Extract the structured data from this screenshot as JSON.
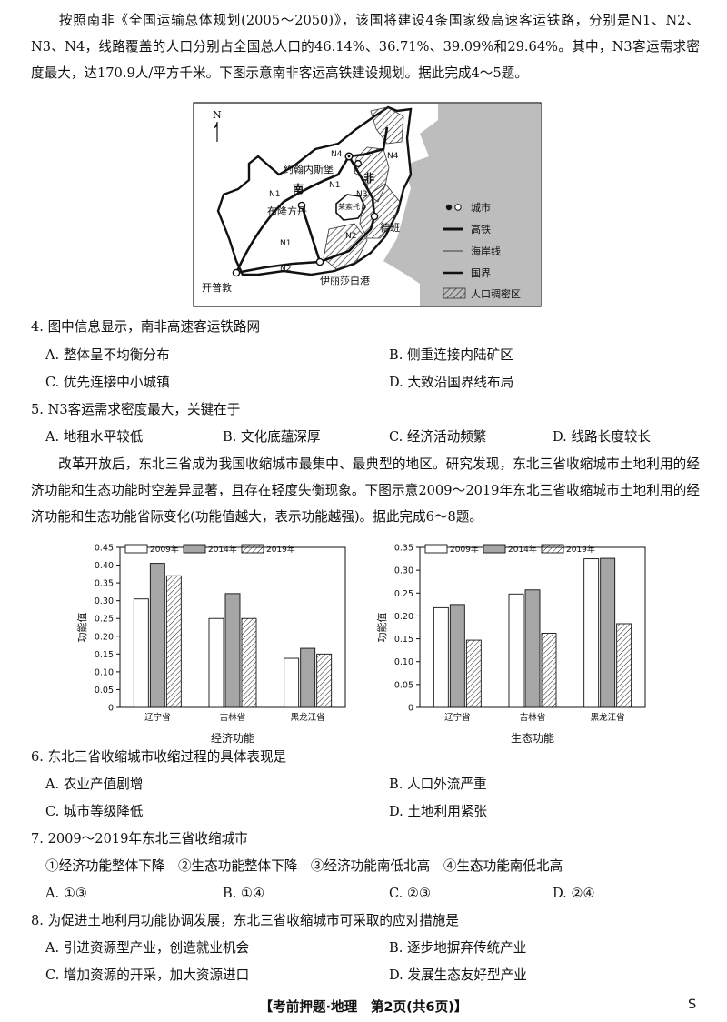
{
  "intro1": "按照南非《全国运输总体规划(2005～2050)》，该国将建设4条国家级高速客运铁路，分别是N1、N2、N3、N4，线路覆盖的人口分别占全国总人口的46.14%、36.71%、39.09%和29.64%。其中，N3客运需求密度最大，达170.9人/平方千米。下图示意南非客运高铁建设规划。据此完成4～5题。",
  "map": {
    "north": "N",
    "country": "南",
    "country2": "非",
    "lesotho": "莱索托",
    "cities": [
      "约翰内斯堡",
      "布隆方丹",
      "德班",
      "开普敦",
      "伊丽莎白港"
    ],
    "lines": [
      "N1",
      "N1",
      "N1",
      "N2",
      "N2",
      "N3",
      "N4",
      "N4"
    ],
    "legend": [
      "城市",
      "高铁",
      "海岸线",
      "国界",
      "人口稠密区"
    ]
  },
  "q4": {
    "stem": "4. 图中信息显示，南非高速客运铁路网",
    "options": [
      "A. 整体呈不均衡分布",
      "B. 侧重连接内陆矿区",
      "C. 优先连接中小城镇",
      "D. 大致沿国界线布局"
    ]
  },
  "q5": {
    "stem": "5. N3客运需求密度最大，关键在于",
    "options": [
      "A. 地租水平较低",
      "B. 文化底蕴深厚",
      "C. 经济活动频繁",
      "D. 线路长度较长"
    ]
  },
  "intro2": "改革开放后，东北三省成为我国收缩城市最集中、最典型的地区。研究发现，东北三省收缩城市土地利用的经济功能和生态功能时空差异显著，且存在轻度失衡现象。下图示意2009～2019年东北三省收缩城市土地利用的经济功能和生态功能省际变化(功能值越大，表示功能越强)。据此完成6～8题。",
  "chart_data": [
    {
      "type": "bar",
      "title": "经济功能",
      "ylabel": "功能值",
      "categories": [
        "辽宁省",
        "吉林省",
        "黑龙江省"
      ],
      "ylim": [
        0,
        0.45
      ],
      "ticks": [
        "0",
        "0.05",
        "0.10",
        "0.15",
        "0.20",
        "0.25",
        "0.30",
        "0.35",
        "0.40",
        "0.45"
      ],
      "legend": "top",
      "series": [
        {
          "name": "2009年",
          "values": [
            0.305,
            0.25,
            0.138
          ]
        },
        {
          "name": "2014年",
          "values": [
            0.405,
            0.32,
            0.166
          ]
        },
        {
          "name": "2019年",
          "values": [
            0.37,
            0.25,
            0.15
          ]
        }
      ]
    },
    {
      "type": "bar",
      "title": "生态功能",
      "ylabel": "功能值",
      "categories": [
        "辽宁省",
        "吉林省",
        "黑龙江省"
      ],
      "ylim": [
        0,
        0.35
      ],
      "ticks": [
        "0",
        "0.05",
        "0.10",
        "0.15",
        "0.20",
        "0.25",
        "0.30",
        "0.35"
      ],
      "legend": "top",
      "series": [
        {
          "name": "2009年",
          "values": [
            0.218,
            0.248,
            0.325
          ]
        },
        {
          "name": "2014年",
          "values": [
            0.225,
            0.257,
            0.326
          ]
        },
        {
          "name": "2019年",
          "values": [
            0.147,
            0.162,
            0.183
          ]
        }
      ]
    }
  ],
  "q6": {
    "stem": "6. 东北三省收缩城市收缩过程的具体表现是",
    "options": [
      "A. 农业产值剧增",
      "B. 人口外流严重",
      "C. 城市等级降低",
      "D. 土地利用紧张"
    ]
  },
  "q7": {
    "stem": "7. 2009～2019年东北三省收缩城市",
    "statements": "①经济功能整体下降　②生态功能整体下降　③经济功能南低北高　④生态功能南低北高",
    "options": [
      "A. ①③",
      "B. ①④",
      "C. ②③",
      "D. ②④"
    ]
  },
  "q8": {
    "stem": "8. 为促进土地利用功能协调发展，东北三省收缩城市可采取的应对措施是",
    "options": [
      "A. 引进资源型产业，创造就业机会",
      "B. 逐步地摒弃传统产业",
      "C. 增加资源的开采，加大资源进口",
      "D. 发展生态友好型产业"
    ]
  },
  "footer": "【考前押题·地理　第2页(共6页)】",
  "page_letter": "S"
}
